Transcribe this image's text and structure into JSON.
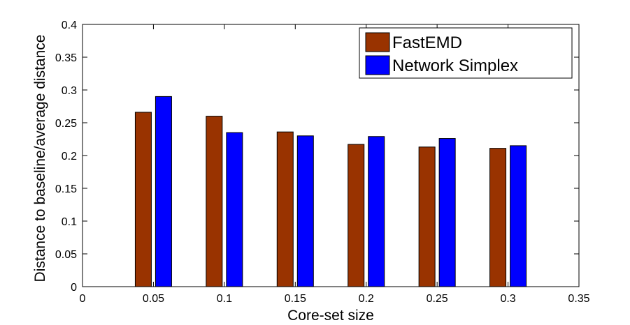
{
  "chart_data": {
    "type": "bar",
    "title": "",
    "xlabel": "Core-set size",
    "ylabel": "Distance to baseline/average distance",
    "x": [
      0.05,
      0.1,
      0.15,
      0.2,
      0.25,
      0.3
    ],
    "xlim": [
      0,
      0.35
    ],
    "ylim": [
      0,
      0.4
    ],
    "x_ticks": [
      "0",
      "0.05",
      "0.1",
      "0.15",
      "0.2",
      "0.25",
      "0.3",
      "0.35"
    ],
    "y_ticks": [
      "0",
      "0.05",
      "0.1",
      "0.15",
      "0.2",
      "0.25",
      "0.3",
      "0.35",
      "0.4"
    ],
    "grid": false,
    "legend_position": "top-right",
    "series": [
      {
        "name": "FastEMD",
        "color": "#993300",
        "values": [
          0.266,
          0.26,
          0.236,
          0.217,
          0.213,
          0.211
        ]
      },
      {
        "name": "Network Simplex",
        "color": "#0000ff",
        "values": [
          0.29,
          0.235,
          0.23,
          0.229,
          0.226,
          0.215
        ]
      }
    ]
  }
}
